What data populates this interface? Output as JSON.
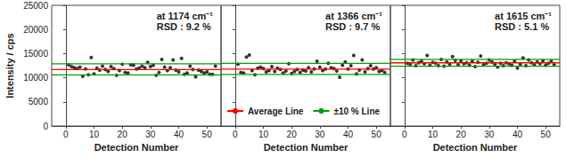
{
  "chart_data": [
    {
      "type": "scatter",
      "title": "at 1174 cm⁻¹",
      "annotation": "RSD : 9.2 %",
      "xlabel": "Detection Number",
      "ylabel": "Intensity / cps",
      "x": [
        1,
        2,
        3,
        4,
        5,
        6,
        7,
        8,
        9,
        10,
        11,
        12,
        13,
        14,
        15,
        16,
        17,
        18,
        19,
        20,
        21,
        22,
        23,
        24,
        25,
        26,
        27,
        28,
        29,
        30,
        31,
        32,
        33,
        34,
        35,
        36,
        37,
        38,
        39,
        40,
        41,
        42,
        43,
        44,
        45,
        46,
        47,
        48,
        49,
        50,
        51,
        52,
        53
      ],
      "values": [
        12700,
        12300,
        12100,
        11900,
        12200,
        10300,
        11800,
        10600,
        14200,
        10800,
        12000,
        11600,
        12400,
        11700,
        11300,
        12300,
        11900,
        10500,
        11500,
        12800,
        11100,
        11000,
        12700,
        12600,
        11800,
        12000,
        12400,
        12100,
        13200,
        12300,
        12600,
        10500,
        11100,
        13800,
        12200,
        11500,
        12100,
        13700,
        11600,
        11200,
        14000,
        10700,
        11000,
        12400,
        11700,
        10200,
        11600,
        11300,
        11000,
        11200,
        10700,
        10700,
        12400
      ],
      "color": "#000000",
      "marker": "circle",
      "reference_lines": [
        {
          "name": "Average Line",
          "color": "#ff0000",
          "values": [
            11700
          ]
        },
        {
          "name": "±10 % Line",
          "color": "#00a000",
          "values": [
            10600,
            12900
          ]
        }
      ],
      "xlim": [
        -5,
        55
      ],
      "xticks": [
        0,
        10,
        20,
        30,
        40,
        50
      ],
      "ylim": [
        0,
        25000
      ],
      "yticks": [
        0,
        5000,
        10000,
        15000,
        20000,
        25000
      ],
      "grid": false
    },
    {
      "type": "scatter",
      "title": "at 1366 cm⁻¹",
      "annotation": "RSD : 9.7 %",
      "xlabel": "Detection Number",
      "x": [
        1,
        2,
        3,
        4,
        5,
        6,
        7,
        8,
        9,
        10,
        11,
        12,
        13,
        14,
        15,
        16,
        17,
        18,
        19,
        20,
        21,
        22,
        23,
        24,
        25,
        26,
        27,
        28,
        29,
        30,
        31,
        32,
        33,
        34,
        35,
        36,
        37,
        38,
        39,
        40,
        41,
        42,
        43,
        44,
        45,
        46,
        47,
        48,
        49,
        50,
        51,
        52,
        53
      ],
      "values": [
        12800,
        11100,
        11000,
        14300,
        14700,
        11500,
        10600,
        12000,
        12200,
        11900,
        11200,
        11500,
        12300,
        11300,
        12000,
        11700,
        11000,
        11400,
        12900,
        10900,
        11300,
        11700,
        11100,
        11600,
        11400,
        12100,
        11200,
        11800,
        13400,
        12200,
        11500,
        11800,
        13000,
        12100,
        11900,
        11400,
        10100,
        12600,
        13300,
        11800,
        12500,
        14600,
        10800,
        11600,
        13700,
        11200,
        11900,
        12500,
        11800,
        12100,
        11300,
        11500,
        11100
      ],
      "color": "#000000",
      "marker": "circle",
      "reference_lines": [
        {
          "name": "Average Line",
          "color": "#ff0000",
          "values": [
            11800
          ]
        },
        {
          "name": "±10 % Line",
          "color": "#00a000",
          "values": [
            10700,
            13000
          ]
        }
      ],
      "legend": "bottom",
      "xlim": [
        -5,
        55
      ],
      "xticks": [
        0,
        10,
        20,
        30,
        40,
        50
      ],
      "ylim": [
        0,
        25000
      ],
      "yticks": [
        0,
        5000,
        10000,
        15000,
        20000,
        25000
      ],
      "grid": false,
      "tick_labels": "x"
    },
    {
      "type": "scatter",
      "title": "at 1615 cm⁻¹",
      "annotation": "RSD : 5.1 %",
      "xlabel": "Detection Number",
      "x": [
        1,
        2,
        3,
        4,
        5,
        6,
        7,
        8,
        9,
        10,
        11,
        12,
        13,
        14,
        15,
        16,
        17,
        18,
        19,
        20,
        21,
        22,
        23,
        24,
        25,
        26,
        27,
        28,
        29,
        30,
        31,
        32,
        33,
        34,
        35,
        36,
        37,
        38,
        39,
        40,
        41,
        42,
        43,
        44,
        45,
        46,
        47,
        48,
        49,
        50,
        51,
        52,
        53
      ],
      "values": [
        13000,
        12800,
        13700,
        12500,
        13100,
        13400,
        12900,
        14600,
        12600,
        13200,
        13000,
        12500,
        13800,
        12400,
        13300,
        12800,
        14400,
        13600,
        12700,
        13500,
        12900,
        13100,
        12600,
        13400,
        12300,
        13200,
        14500,
        12700,
        13000,
        13700,
        13300,
        12800,
        12200,
        13000,
        12500,
        13100,
        12900,
        12600,
        13400,
        12000,
        12800,
        14100,
        12500,
        13700,
        13100,
        12700,
        13300,
        12900,
        13500,
        12600,
        13000,
        13400,
        12700
      ],
      "color": "#000000",
      "marker": "circle",
      "reference_lines": [
        {
          "name": "Average Line",
          "color": "#ff0000",
          "values": [
            13100
          ]
        },
        {
          "name": "±10 % Line",
          "color": "#00a000",
          "values": [
            12400,
            13800
          ]
        }
      ],
      "xlim": [
        -5,
        55
      ],
      "xticks": [
        0,
        10,
        20,
        30,
        40,
        50
      ],
      "ylim": [
        0,
        25000
      ],
      "yticks": [
        0,
        5000,
        10000,
        15000,
        20000,
        25000
      ],
      "grid": false,
      "tick_labels": "x"
    }
  ]
}
